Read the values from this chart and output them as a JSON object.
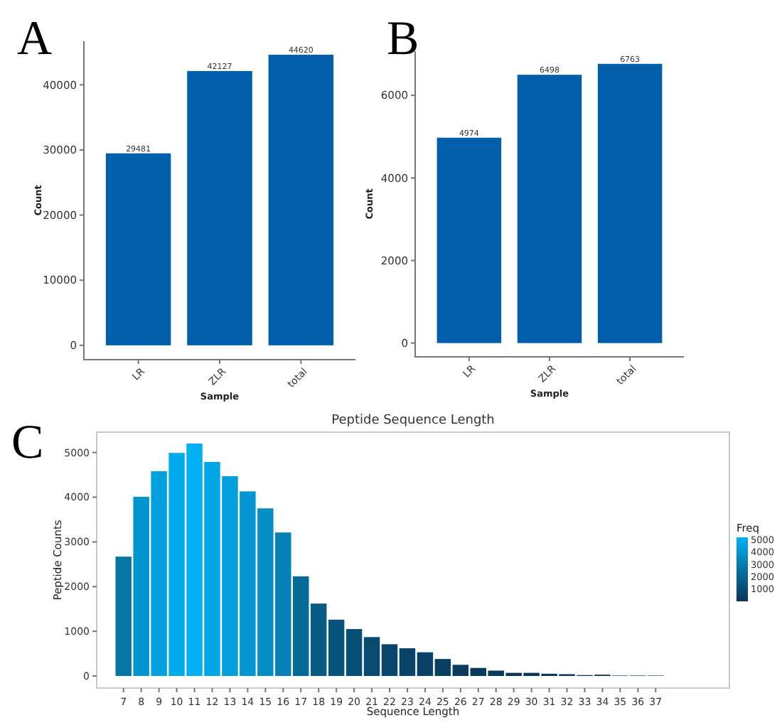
{
  "chart_data": [
    {
      "type": "bar",
      "title": "A",
      "xlabel": "Sample",
      "ylabel": "Count",
      "categories": [
        "LR",
        "ZLR",
        "total"
      ],
      "values": [
        29481,
        42127,
        44620
      ],
      "color": "#005eaa",
      "ylim": [
        -2200,
        46700
      ],
      "yticks": [
        0,
        10000,
        20000,
        30000,
        40000
      ],
      "data_labels": true
    },
    {
      "type": "bar",
      "title": "B",
      "xlabel": "Sample",
      "ylabel": "Count",
      "categories": [
        "LR",
        "ZLR",
        "total"
      ],
      "values": [
        4974,
        6498,
        6763
      ],
      "color": "#005eaa",
      "ylim": [
        -333,
        7070
      ],
      "yticks": [
        0,
        2000,
        4000,
        6000
      ],
      "data_labels": true
    },
    {
      "type": "bar",
      "title": "Peptide Sequence Length",
      "annotations": [
        "C"
      ],
      "xlabel": "Sequence Length",
      "ylabel": "Peptide Counts",
      "categories": [
        "7",
        "8",
        "9",
        "10",
        "11",
        "12",
        "13",
        "14",
        "15",
        "16",
        "17",
        "18",
        "19",
        "20",
        "21",
        "22",
        "23",
        "24",
        "25",
        "26",
        "27",
        "28",
        "29",
        "30",
        "31",
        "32",
        "33",
        "34",
        "35",
        "36",
        "37"
      ],
      "values": [
        2670,
        4010,
        4580,
        4990,
        5200,
        4790,
        4470,
        4130,
        3750,
        3210,
        2230,
        1620,
        1260,
        1050,
        870,
        710,
        620,
        530,
        380,
        250,
        180,
        120,
        70,
        70,
        50,
        40,
        20,
        30,
        10,
        10,
        10
      ],
      "ylim": [
        -270,
        5455
      ],
      "yticks": [
        0,
        1000,
        2000,
        3000,
        4000,
        5000
      ],
      "clabel": "Freq",
      "clim": [
        10,
        5200
      ],
      "cticks": [
        1000,
        2000,
        3000,
        4000,
        5000
      ]
    }
  ]
}
